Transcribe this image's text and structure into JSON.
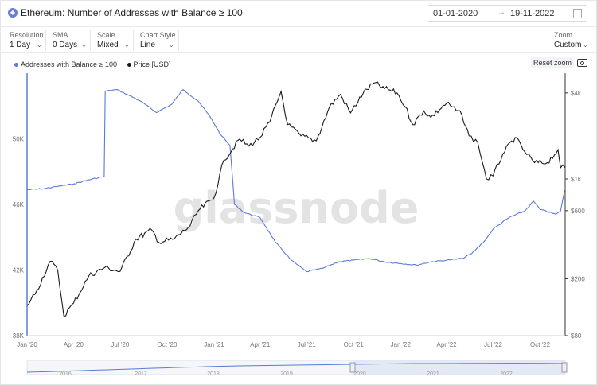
{
  "header": {
    "title": "Ethereum: Number of Addresses with Balance ≥ 100",
    "coin_icon": "ethereum-icon",
    "date_from": "01-01-2020",
    "date_arrow": "→",
    "date_to": "19-11-2022",
    "calendar_icon": "calendar-icon"
  },
  "controls": [
    {
      "label": "Resolution",
      "value": "1 Day"
    },
    {
      "label": "SMA",
      "value": "0 Days"
    },
    {
      "label": "Scale",
      "value": "Mixed"
    },
    {
      "label": "Chart Style",
      "value": "Line"
    },
    {
      "label": "Zoom",
      "value": "Custom"
    }
  ],
  "toolbar": {
    "reset_label": "Reset zoom",
    "camera_icon": "camera-icon"
  },
  "colors": {
    "addresses": "#5b7bd5",
    "price": "#1a1a1a",
    "watermark": "#e3e3e3",
    "grid": "#eceef1"
  },
  "chart_data": {
    "type": "line",
    "title": "Ethereum: Number of Addresses with Balance ≥ 100",
    "watermark": "glassnode",
    "x_ticks": [
      "Jan '20",
      "Apr '20",
      "Jul '20",
      "Oct '20",
      "Jan '21",
      "Apr '21",
      "Jul '21",
      "Oct '21",
      "Jan '22",
      "Apr '22",
      "Jul '22",
      "Oct '22"
    ],
    "left_axis": {
      "ticks": [
        "38K",
        "42K",
        "46K",
        "50K"
      ],
      "range": [
        38000,
        54000
      ]
    },
    "right_axis": {
      "scale": "log",
      "ticks": [
        "$80",
        "$200",
        "$600",
        "$1k",
        "$4k"
      ],
      "tick_values": [
        80,
        200,
        600,
        1000,
        4000
      ],
      "range": [
        80,
        5500
      ]
    },
    "series": [
      {
        "name": "Addresses with Balance ≥ 100",
        "axis": "left",
        "color": "#5b7bd5",
        "points": [
          [
            "2020-01-01",
            46900
          ],
          [
            "2020-02-01",
            46950
          ],
          [
            "2020-03-01",
            47100
          ],
          [
            "2020-04-01",
            47250
          ],
          [
            "2020-05-01",
            47500
          ],
          [
            "2020-05-31",
            47700
          ],
          [
            "2020-06-02",
            52900
          ],
          [
            "2020-06-25",
            53000
          ],
          [
            "2020-07-15",
            52700
          ],
          [
            "2020-08-10",
            52300
          ],
          [
            "2020-09-10",
            51600
          ],
          [
            "2020-10-10",
            52100
          ],
          [
            "2020-11-01",
            53000
          ],
          [
            "2020-12-01",
            52300
          ],
          [
            "2020-12-25",
            51300
          ],
          [
            "2021-01-15",
            50200
          ],
          [
            "2021-02-01",
            49600
          ],
          [
            "2021-02-10",
            46000
          ],
          [
            "2021-03-01",
            45500
          ],
          [
            "2021-04-01",
            45200
          ],
          [
            "2021-05-01",
            43700
          ],
          [
            "2021-06-01",
            42600
          ],
          [
            "2021-07-01",
            41900
          ],
          [
            "2021-08-01",
            42100
          ],
          [
            "2021-09-01",
            42500
          ],
          [
            "2021-10-01",
            42600
          ],
          [
            "2021-11-01",
            42700
          ],
          [
            "2021-12-01",
            42500
          ],
          [
            "2022-01-01",
            42400
          ],
          [
            "2022-02-01",
            42300
          ],
          [
            "2022-03-01",
            42500
          ],
          [
            "2022-04-01",
            42600
          ],
          [
            "2022-05-01",
            42700
          ],
          [
            "2022-05-20",
            43000
          ],
          [
            "2022-06-15",
            43800
          ],
          [
            "2022-07-01",
            44500
          ],
          [
            "2022-08-01",
            45200
          ],
          [
            "2022-09-01",
            45600
          ],
          [
            "2022-09-18",
            46200
          ],
          [
            "2022-10-01",
            45700
          ],
          [
            "2022-11-01",
            45400
          ],
          [
            "2022-11-10",
            45600
          ],
          [
            "2022-11-19",
            47000
          ]
        ]
      },
      {
        "name": "Price [USD]",
        "axis": "right",
        "color": "#1a1a1a",
        "points": [
          [
            "2020-01-01",
            130
          ],
          [
            "2020-01-20",
            165
          ],
          [
            "2020-02-15",
            265
          ],
          [
            "2020-03-01",
            230
          ],
          [
            "2020-03-13",
            110
          ],
          [
            "2020-04-01",
            135
          ],
          [
            "2020-05-01",
            210
          ],
          [
            "2020-06-01",
            240
          ],
          [
            "2020-07-01",
            225
          ],
          [
            "2020-08-01",
            380
          ],
          [
            "2020-09-01",
            440
          ],
          [
            "2020-09-15",
            360
          ],
          [
            "2020-10-15",
            380
          ],
          [
            "2020-11-15",
            470
          ],
          [
            "2020-12-01",
            600
          ],
          [
            "2021-01-01",
            740
          ],
          [
            "2021-01-20",
            1350
          ],
          [
            "2021-02-20",
            1900
          ],
          [
            "2021-03-10",
            1700
          ],
          [
            "2021-04-01",
            1950
          ],
          [
            "2021-04-20",
            2500
          ],
          [
            "2021-05-12",
            4100
          ],
          [
            "2021-05-25",
            2400
          ],
          [
            "2021-06-20",
            2000
          ],
          [
            "2021-07-20",
            1850
          ],
          [
            "2021-08-15",
            3200
          ],
          [
            "2021-09-05",
            3900
          ],
          [
            "2021-09-25",
            2900
          ],
          [
            "2021-10-20",
            4000
          ],
          [
            "2021-11-10",
            4700
          ],
          [
            "2021-12-01",
            4300
          ],
          [
            "2021-12-25",
            4000
          ],
          [
            "2022-01-10",
            3200
          ],
          [
            "2022-01-25",
            2400
          ],
          [
            "2022-02-15",
            3000
          ],
          [
            "2022-03-01",
            2700
          ],
          [
            "2022-04-01",
            3400
          ],
          [
            "2022-05-01",
            2800
          ],
          [
            "2022-05-15",
            2000
          ],
          [
            "2022-06-01",
            1800
          ],
          [
            "2022-06-18",
            1000
          ],
          [
            "2022-07-01",
            1050
          ],
          [
            "2022-07-20",
            1500
          ],
          [
            "2022-08-13",
            1950
          ],
          [
            "2022-09-01",
            1550
          ],
          [
            "2022-09-20",
            1300
          ],
          [
            "2022-10-15",
            1300
          ],
          [
            "2022-11-05",
            1600
          ],
          [
            "2022-11-10",
            1200
          ],
          [
            "2022-11-19",
            1200
          ]
        ]
      }
    ],
    "navigator": {
      "labels": [
        "2016",
        "2017",
        "2018",
        "2019",
        "2020",
        "2021",
        "2022"
      ]
    }
  }
}
